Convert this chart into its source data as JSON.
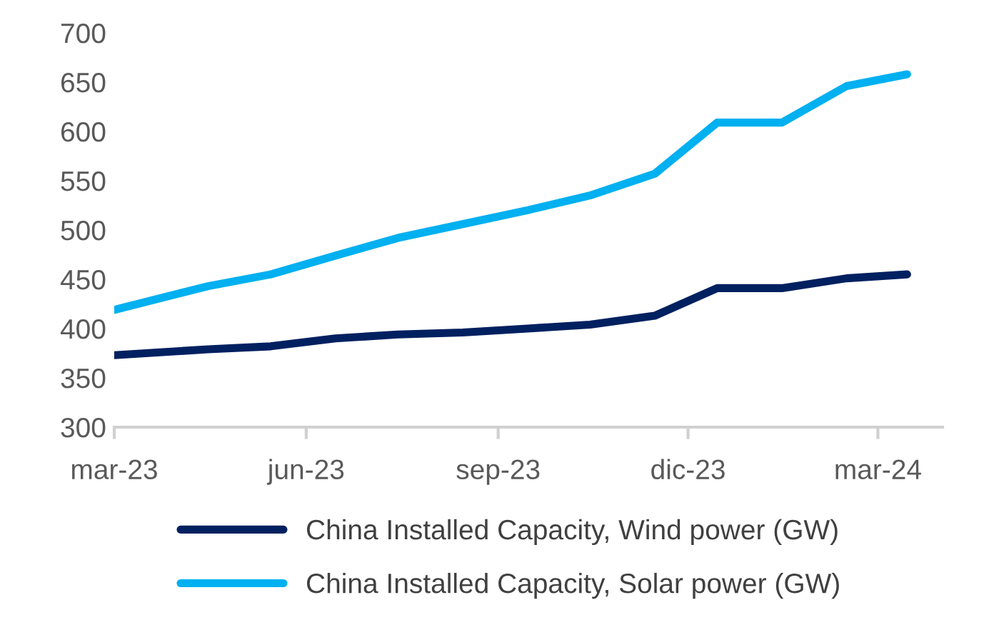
{
  "chart_data": {
    "type": "line",
    "x": [
      "2023-03-01",
      "2023-04-15",
      "2023-05-15",
      "2023-06-15",
      "2023-07-15",
      "2023-08-15",
      "2023-09-15",
      "2023-10-15",
      "2023-11-15",
      "2023-12-15",
      "2024-01-15",
      "2024-02-15",
      "2024-03-15"
    ],
    "xlim": [
      "2023-03-01",
      "2024-04-01"
    ],
    "xticks": [
      {
        "value": "2023-03-01",
        "label": "mar-23"
      },
      {
        "value": "2023-06-01",
        "label": "jun-23"
      },
      {
        "value": "2023-09-01",
        "label": "sep-23"
      },
      {
        "value": "2023-12-01",
        "label": "dic-23"
      },
      {
        "value": "2024-03-01",
        "label": "mar-24"
      }
    ],
    "ylim": [
      300,
      700
    ],
    "yticks": [
      300,
      350,
      400,
      450,
      500,
      550,
      600,
      650,
      700
    ],
    "series": [
      {
        "name": "China Installed Capacity, Wind power (GW)",
        "color": "#002060",
        "values": [
          373,
          379,
          382,
          390,
          394,
          396,
          400,
          404,
          413,
          441,
          441,
          451,
          455
        ]
      },
      {
        "name": "China Installed Capacity, Solar power (GW)",
        "color": "#00b0f0",
        "values": [
          419,
          443,
          455,
          474,
          492,
          506,
          520,
          535,
          557,
          609,
          609,
          646,
          658
        ]
      }
    ],
    "grid": false,
    "legend": "bottom",
    "marker": "none",
    "line_style": "solid"
  }
}
